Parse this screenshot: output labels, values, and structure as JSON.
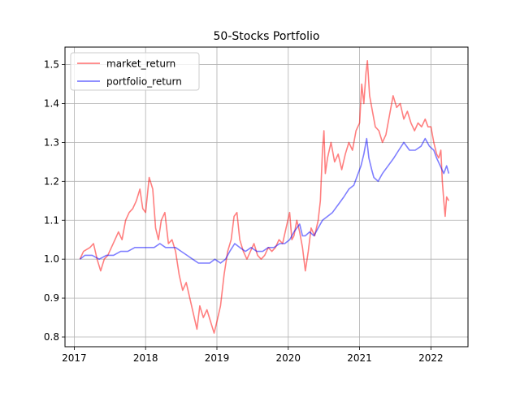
{
  "chart_data": {
    "type": "line",
    "title": "50-Stocks Portfolio",
    "xlabel": "",
    "ylabel": "",
    "xlim": [
      2016.87,
      2022.52
    ],
    "ylim": [
      0.775,
      1.545
    ],
    "grid": true,
    "legend_position": "upper-left",
    "x_ticks": [
      {
        "value": 2017,
        "label": "2017"
      },
      {
        "value": 2018,
        "label": "2018"
      },
      {
        "value": 2019,
        "label": "2019"
      },
      {
        "value": 2020,
        "label": "2020"
      },
      {
        "value": 2021,
        "label": "2021"
      },
      {
        "value": 2022,
        "label": "2022"
      }
    ],
    "y_ticks": [
      {
        "value": 0.8,
        "label": "0.8"
      },
      {
        "value": 0.9,
        "label": "0.9"
      },
      {
        "value": 1.0,
        "label": "1.0"
      },
      {
        "value": 1.1,
        "label": "1.1"
      },
      {
        "value": 1.2,
        "label": "1.2"
      },
      {
        "value": 1.3,
        "label": "1.3"
      },
      {
        "value": 1.4,
        "label": "1.4"
      },
      {
        "value": 1.5,
        "label": "1.5"
      }
    ],
    "series": [
      {
        "name": "market_return",
        "color": "#ff0000",
        "opacity": 0.5,
        "points": [
          [
            2017.08,
            1.0
          ],
          [
            2017.13,
            1.02
          ],
          [
            2017.22,
            1.03
          ],
          [
            2017.27,
            1.04
          ],
          [
            2017.32,
            1.0
          ],
          [
            2017.37,
            0.97
          ],
          [
            2017.42,
            1.0
          ],
          [
            2017.47,
            1.01
          ],
          [
            2017.52,
            1.03
          ],
          [
            2017.57,
            1.05
          ],
          [
            2017.62,
            1.07
          ],
          [
            2017.67,
            1.05
          ],
          [
            2017.72,
            1.1
          ],
          [
            2017.77,
            1.12
          ],
          [
            2017.82,
            1.13
          ],
          [
            2017.87,
            1.15
          ],
          [
            2017.92,
            1.18
          ],
          [
            2017.96,
            1.13
          ],
          [
            2018.0,
            1.12
          ],
          [
            2018.05,
            1.21
          ],
          [
            2018.1,
            1.18
          ],
          [
            2018.14,
            1.08
          ],
          [
            2018.18,
            1.05
          ],
          [
            2018.22,
            1.1
          ],
          [
            2018.27,
            1.12
          ],
          [
            2018.32,
            1.04
          ],
          [
            2018.37,
            1.05
          ],
          [
            2018.42,
            1.02
          ],
          [
            2018.47,
            0.96
          ],
          [
            2018.52,
            0.92
          ],
          [
            2018.57,
            0.94
          ],
          [
            2018.62,
            0.9
          ],
          [
            2018.67,
            0.86
          ],
          [
            2018.72,
            0.82
          ],
          [
            2018.76,
            0.88
          ],
          [
            2018.81,
            0.85
          ],
          [
            2018.86,
            0.87
          ],
          [
            2018.91,
            0.84
          ],
          [
            2018.96,
            0.81
          ],
          [
            2019.0,
            0.84
          ],
          [
            2019.05,
            0.88
          ],
          [
            2019.1,
            0.96
          ],
          [
            2019.15,
            1.02
          ],
          [
            2019.2,
            1.05
          ],
          [
            2019.24,
            1.11
          ],
          [
            2019.28,
            1.12
          ],
          [
            2019.32,
            1.05
          ],
          [
            2019.37,
            1.02
          ],
          [
            2019.42,
            1.0
          ],
          [
            2019.47,
            1.02
          ],
          [
            2019.52,
            1.04
          ],
          [
            2019.57,
            1.01
          ],
          [
            2019.62,
            1.0
          ],
          [
            2019.67,
            1.01
          ],
          [
            2019.72,
            1.03
          ],
          [
            2019.77,
            1.02
          ],
          [
            2019.82,
            1.03
          ],
          [
            2019.87,
            1.05
          ],
          [
            2019.92,
            1.04
          ],
          [
            2019.97,
            1.08
          ],
          [
            2020.02,
            1.12
          ],
          [
            2020.05,
            1.05
          ],
          [
            2020.08,
            1.06
          ],
          [
            2020.12,
            1.1
          ],
          [
            2020.16,
            1.07
          ],
          [
            2020.2,
            1.03
          ],
          [
            2020.24,
            0.97
          ],
          [
            2020.28,
            1.02
          ],
          [
            2020.32,
            1.08
          ],
          [
            2020.37,
            1.06
          ],
          [
            2020.42,
            1.1
          ],
          [
            2020.45,
            1.15
          ],
          [
            2020.48,
            1.28
          ],
          [
            2020.5,
            1.33
          ],
          [
            2020.52,
            1.22
          ],
          [
            2020.55,
            1.26
          ],
          [
            2020.6,
            1.3
          ],
          [
            2020.65,
            1.25
          ],
          [
            2020.7,
            1.27
          ],
          [
            2020.75,
            1.23
          ],
          [
            2020.8,
            1.27
          ],
          [
            2020.85,
            1.3
          ],
          [
            2020.9,
            1.28
          ],
          [
            2020.95,
            1.33
          ],
          [
            2021.0,
            1.35
          ],
          [
            2021.03,
            1.45
          ],
          [
            2021.06,
            1.4
          ],
          [
            2021.09,
            1.48
          ],
          [
            2021.11,
            1.51
          ],
          [
            2021.14,
            1.42
          ],
          [
            2021.18,
            1.38
          ],
          [
            2021.22,
            1.34
          ],
          [
            2021.27,
            1.33
          ],
          [
            2021.32,
            1.3
          ],
          [
            2021.37,
            1.32
          ],
          [
            2021.42,
            1.37
          ],
          [
            2021.47,
            1.42
          ],
          [
            2021.52,
            1.39
          ],
          [
            2021.57,
            1.4
          ],
          [
            2021.62,
            1.36
          ],
          [
            2021.67,
            1.38
          ],
          [
            2021.72,
            1.35
          ],
          [
            2021.77,
            1.33
          ],
          [
            2021.82,
            1.35
          ],
          [
            2021.87,
            1.34
          ],
          [
            2021.92,
            1.36
          ],
          [
            2021.96,
            1.34
          ],
          [
            2022.0,
            1.34
          ],
          [
            2022.04,
            1.3
          ],
          [
            2022.08,
            1.27
          ],
          [
            2022.11,
            1.26
          ],
          [
            2022.14,
            1.28
          ],
          [
            2022.16,
            1.2
          ],
          [
            2022.18,
            1.15
          ],
          [
            2022.2,
            1.11
          ],
          [
            2022.22,
            1.16
          ],
          [
            2022.25,
            1.15
          ]
        ]
      },
      {
        "name": "portfolio_return",
        "color": "#0000ff",
        "opacity": 0.5,
        "points": [
          [
            2017.08,
            1.0
          ],
          [
            2017.15,
            1.01
          ],
          [
            2017.25,
            1.01
          ],
          [
            2017.35,
            1.0
          ],
          [
            2017.45,
            1.01
          ],
          [
            2017.55,
            1.01
          ],
          [
            2017.65,
            1.02
          ],
          [
            2017.75,
            1.02
          ],
          [
            2017.85,
            1.03
          ],
          [
            2017.95,
            1.03
          ],
          [
            2018.05,
            1.03
          ],
          [
            2018.12,
            1.03
          ],
          [
            2018.2,
            1.04
          ],
          [
            2018.28,
            1.03
          ],
          [
            2018.35,
            1.03
          ],
          [
            2018.42,
            1.03
          ],
          [
            2018.5,
            1.02
          ],
          [
            2018.58,
            1.01
          ],
          [
            2018.66,
            1.0
          ],
          [
            2018.74,
            0.99
          ],
          [
            2018.82,
            0.99
          ],
          [
            2018.9,
            0.99
          ],
          [
            2018.97,
            1.0
          ],
          [
            2019.05,
            0.99
          ],
          [
            2019.12,
            1.0
          ],
          [
            2019.18,
            1.02
          ],
          [
            2019.25,
            1.04
          ],
          [
            2019.32,
            1.03
          ],
          [
            2019.4,
            1.02
          ],
          [
            2019.48,
            1.03
          ],
          [
            2019.56,
            1.02
          ],
          [
            2019.64,
            1.02
          ],
          [
            2019.72,
            1.03
          ],
          [
            2019.8,
            1.03
          ],
          [
            2019.88,
            1.04
          ],
          [
            2019.95,
            1.04
          ],
          [
            2020.02,
            1.05
          ],
          [
            2020.08,
            1.07
          ],
          [
            2020.12,
            1.08
          ],
          [
            2020.16,
            1.09
          ],
          [
            2020.2,
            1.06
          ],
          [
            2020.24,
            1.06
          ],
          [
            2020.3,
            1.07
          ],
          [
            2020.36,
            1.06
          ],
          [
            2020.42,
            1.08
          ],
          [
            2020.48,
            1.1
          ],
          [
            2020.55,
            1.11
          ],
          [
            2020.62,
            1.12
          ],
          [
            2020.7,
            1.14
          ],
          [
            2020.78,
            1.16
          ],
          [
            2020.85,
            1.18
          ],
          [
            2020.92,
            1.19
          ],
          [
            2020.98,
            1.22
          ],
          [
            2021.02,
            1.24
          ],
          [
            2021.06,
            1.27
          ],
          [
            2021.1,
            1.31
          ],
          [
            2021.13,
            1.26
          ],
          [
            2021.17,
            1.23
          ],
          [
            2021.2,
            1.21
          ],
          [
            2021.26,
            1.2
          ],
          [
            2021.32,
            1.22
          ],
          [
            2021.4,
            1.24
          ],
          [
            2021.48,
            1.26
          ],
          [
            2021.55,
            1.28
          ],
          [
            2021.62,
            1.3
          ],
          [
            2021.7,
            1.28
          ],
          [
            2021.78,
            1.28
          ],
          [
            2021.86,
            1.29
          ],
          [
            2021.92,
            1.31
          ],
          [
            2021.98,
            1.29
          ],
          [
            2022.04,
            1.28
          ],
          [
            2022.08,
            1.26
          ],
          [
            2022.13,
            1.24
          ],
          [
            2022.18,
            1.22
          ],
          [
            2022.22,
            1.24
          ],
          [
            2022.25,
            1.22
          ]
        ]
      }
    ]
  }
}
